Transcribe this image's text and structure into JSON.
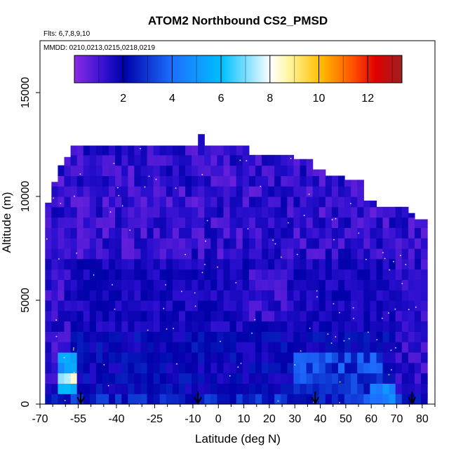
{
  "chart_data": {
    "type": "heatmap",
    "title": "ATOM2 Northbound CS2_PMSD",
    "annotations": [
      "Flts: 6,7,8,9,10",
      "MMDD: 0210,0213,0215,0218,0219"
    ],
    "xlabel": "Latitude (deg N)",
    "ylabel": "Altitude (m)",
    "xlim": [
      -70,
      85
    ],
    "ylim": [
      0,
      17500
    ],
    "x_ticks": [
      -70,
      -55,
      -40,
      -25,
      -10,
      0,
      10,
      20,
      30,
      40,
      50,
      60,
      70,
      80
    ],
    "x_tick_labels": [
      "-70",
      "-55",
      "-40",
      "-25",
      "-10",
      "0",
      "10",
      "20",
      "30",
      "40",
      "50",
      "60",
      "70",
      "80"
    ],
    "y_ticks": [
      0,
      5000,
      10000,
      15000
    ],
    "y_tick_labels": [
      "0",
      "5000",
      "10000",
      "15000"
    ],
    "colorbar": {
      "min": 0,
      "max": 13.4,
      "ticks": [
        2,
        4,
        6,
        8,
        10,
        12
      ],
      "tick_labels": [
        "2",
        "4",
        "6",
        "8",
        "10",
        "12"
      ],
      "colors": [
        "#8a2be2",
        "#0000a8",
        "#1e6fff",
        "#00bfff",
        "#ffffff",
        "#ffd700",
        "#ff8c00",
        "#ff0000",
        "#b22222"
      ]
    },
    "arrow_latitudes": [
      -54,
      -8,
      38,
      76
    ],
    "data_extent": {
      "lat_range": [
        -68,
        81
      ],
      "alt_range": [
        0,
        12500
      ]
    },
    "typical_values": {
      "background": 1.5,
      "upper_layers": 0.5,
      "low_altitude_peak": 7.5,
      "surface_band_max": 4
    }
  }
}
